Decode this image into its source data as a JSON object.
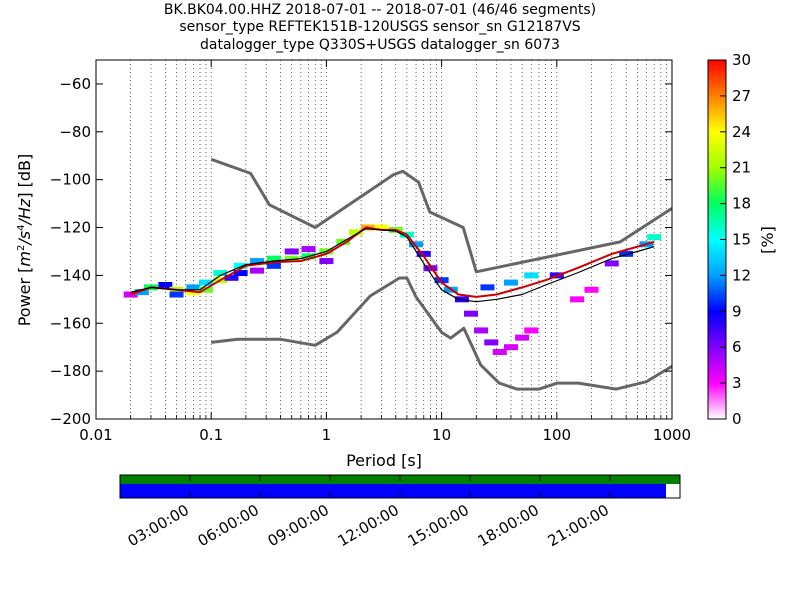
{
  "window": {
    "title_lines": [
      "BK.BK04.00.HHZ   2018-07-01 -- 2018-07-01  (46/46 segments)",
      "sensor_type REFTEK151B-120USGS sensor_sn G12187VS",
      "datalogger_type Q330S+USGS datalogger_sn 6073"
    ]
  },
  "chart_data": [
    {
      "type": "heatmap",
      "title": "BK.BK04.00.HHZ   2018-07-01 -- 2018-07-01  (46/46 segments)",
      "xlabel": "Period [s]",
      "ylabel": "Power [m²/s⁴/Hz] [dB]",
      "ylabel_parts": {
        "prefix": "Power [",
        "m": "m",
        "two": "2",
        "s": "/s",
        "four": "4",
        "hz": "/Hz",
        "suffix": "] [dB]"
      },
      "x_scale": "log",
      "xlim": [
        0.01,
        1000
      ],
      "ylim": [
        -200,
        -50
      ],
      "x_ticks": [
        0.01,
        0.1,
        1,
        10,
        100,
        1000
      ],
      "x_tick_labels": [
        "0.01",
        "0.1",
        "1",
        "10",
        "100",
        "1000"
      ],
      "y_ticks": [
        -200,
        -180,
        -160,
        -140,
        -120,
        -100,
        -80,
        -60
      ],
      "y_tick_labels": [
        "−200",
        "−180",
        "−160",
        "−140",
        "−120",
        "−100",
        "−80",
        "−60"
      ],
      "grid": "dotted vertical",
      "colorbar": {
        "label": "[%]",
        "range": [
          0,
          30
        ],
        "ticks": [
          0,
          3,
          6,
          9,
          12,
          15,
          18,
          21,
          24,
          27,
          30
        ],
        "tick_labels": [
          "0",
          "3",
          "6",
          "9",
          "12",
          "15",
          "18",
          "21",
          "24",
          "27",
          "30"
        ],
        "colormap": [
          "#ffffff",
          "#ff00ff",
          "#8000ff",
          "#0000ff",
          "#00a0ff",
          "#00ffff",
          "#00ff60",
          "#a0ff00",
          "#ffff00",
          "#ff8000",
          "#ff0000"
        ]
      },
      "noise_models": {
        "NHNM": {
          "x": [
            0.1,
            0.22,
            0.32,
            0.8,
            3.8,
            4.6,
            6.3,
            7.9,
            15.4,
            20,
            354.8,
            1000
          ],
          "y": [
            -91.5,
            -97.4,
            -110.5,
            -120,
            -98,
            -96.5,
            -101,
            -113.5,
            -120,
            -138.5,
            -126,
            -112
          ]
        },
        "NLNM": {
          "x": [
            0.1,
            0.17,
            0.4,
            0.8,
            1.24,
            2.4,
            4.3,
            5,
            6,
            10,
            12,
            15.6,
            21.9,
            31.6,
            45,
            70,
            101,
            154,
            328,
            600,
            1000
          ],
          "y": [
            -168,
            -166.7,
            -166.7,
            -169.2,
            -163.7,
            -148.6,
            -141.1,
            -141.1,
            -149,
            -163.8,
            -166.2,
            -162.1,
            -177.5,
            -185,
            -187.5,
            -187.5,
            -185,
            -185,
            -187.5,
            -184.4,
            -178
          ]
        },
        "color": "#666666"
      },
      "ppsd_mode": {
        "x": [
          0.02,
          0.03,
          0.05,
          0.08,
          0.12,
          0.2,
          0.35,
          0.6,
          1,
          1.5,
          2.2,
          3,
          4,
          5,
          7,
          10,
          14,
          20,
          30,
          50,
          80,
          150,
          300,
          500,
          700
        ],
        "y": [
          -148,
          -145,
          -146,
          -147,
          -142,
          -136,
          -134.5,
          -134,
          -131,
          -126,
          -120,
          -121,
          -121,
          -123,
          -132,
          -143,
          -148,
          -149,
          -148,
          -145,
          -142,
          -137,
          -131,
          -128,
          -126
        ]
      },
      "ppsd_mean": {
        "x": [
          0.02,
          0.03,
          0.05,
          0.08,
          0.12,
          0.2,
          0.35,
          0.6,
          1,
          1.5,
          2.2,
          3,
          4,
          5,
          7,
          10,
          14,
          20,
          30,
          50,
          80,
          150,
          300,
          500,
          700
        ],
        "y": [
          -147,
          -145,
          -146,
          -146,
          -140,
          -135.5,
          -134,
          -133,
          -130,
          -125,
          -120.5,
          -121,
          -121.5,
          -124,
          -135,
          -146,
          -150,
          -151,
          -150,
          -148,
          -144,
          -139,
          -133,
          -130,
          -128
        ]
      },
      "ppsd_colors": {
        "mode": "#cc0000",
        "mean": "#000000"
      },
      "density_cells": [
        {
          "x": 0.02,
          "y": -148,
          "p": 4
        },
        {
          "x": 0.025,
          "y": -147,
          "p": 12
        },
        {
          "x": 0.03,
          "y": -145,
          "p": 18
        },
        {
          "x": 0.04,
          "y": -144,
          "p": 9
        },
        {
          "x": 0.05,
          "y": -146,
          "p": 22
        },
        {
          "x": 0.05,
          "y": -148,
          "p": 10
        },
        {
          "x": 0.07,
          "y": -147,
          "p": 24
        },
        {
          "x": 0.07,
          "y": -145,
          "p": 12
        },
        {
          "x": 0.09,
          "y": -143,
          "p": 14
        },
        {
          "x": 0.09,
          "y": -146,
          "p": 20
        },
        {
          "x": 0.12,
          "y": -139,
          "p": 16
        },
        {
          "x": 0.12,
          "y": -142,
          "p": 22
        },
        {
          "x": 0.15,
          "y": -141,
          "p": 8
        },
        {
          "x": 0.18,
          "y": -136,
          "p": 15
        },
        {
          "x": 0.18,
          "y": -139,
          "p": 9
        },
        {
          "x": 0.25,
          "y": -134,
          "p": 12
        },
        {
          "x": 0.25,
          "y": -138,
          "p": 5
        },
        {
          "x": 0.35,
          "y": -133,
          "p": 18
        },
        {
          "x": 0.35,
          "y": -136,
          "p": 10
        },
        {
          "x": 0.5,
          "y": -133,
          "p": 20
        },
        {
          "x": 0.5,
          "y": -130,
          "p": 6
        },
        {
          "x": 0.7,
          "y": -132,
          "p": 18
        },
        {
          "x": 0.7,
          "y": -129,
          "p": 5
        },
        {
          "x": 1,
          "y": -130,
          "p": 20
        },
        {
          "x": 1,
          "y": -134,
          "p": 6
        },
        {
          "x": 1.4,
          "y": -126,
          "p": 20
        },
        {
          "x": 1.8,
          "y": -122,
          "p": 22
        },
        {
          "x": 2.3,
          "y": -120,
          "p": 26
        },
        {
          "x": 3,
          "y": -120,
          "p": 24
        },
        {
          "x": 4,
          "y": -121,
          "p": 20
        },
        {
          "x": 5,
          "y": -123,
          "p": 16
        },
        {
          "x": 6,
          "y": -127,
          "p": 12
        },
        {
          "x": 7,
          "y": -131,
          "p": 8
        },
        {
          "x": 8,
          "y": -137,
          "p": 6
        },
        {
          "x": 10,
          "y": -142,
          "p": 10
        },
        {
          "x": 12,
          "y": -146,
          "p": 12
        },
        {
          "x": 15,
          "y": -150,
          "p": 8
        },
        {
          "x": 18,
          "y": -156,
          "p": 6
        },
        {
          "x": 22,
          "y": -163,
          "p": 5
        },
        {
          "x": 27,
          "y": -168,
          "p": 6
        },
        {
          "x": 32,
          "y": -172,
          "p": 4
        },
        {
          "x": 40,
          "y": -170,
          "p": 4
        },
        {
          "x": 50,
          "y": -166,
          "p": 4
        },
        {
          "x": 60,
          "y": -163,
          "p": 3
        },
        {
          "x": 25,
          "y": -145,
          "p": 10
        },
        {
          "x": 40,
          "y": -143,
          "p": 12
        },
        {
          "x": 60,
          "y": -140,
          "p": 14
        },
        {
          "x": 100,
          "y": -140,
          "p": 8
        },
        {
          "x": 150,
          "y": -150,
          "p": 3
        },
        {
          "x": 200,
          "y": -146,
          "p": 3
        },
        {
          "x": 300,
          "y": -135,
          "p": 6
        },
        {
          "x": 400,
          "y": -131,
          "p": 10
        },
        {
          "x": 600,
          "y": -127,
          "p": 12
        },
        {
          "x": 700,
          "y": -124,
          "p": 16
        }
      ]
    },
    {
      "type": "bar",
      "title": "",
      "xlabel": "",
      "tick_labels": [
        "03:00:00",
        "06:00:00",
        "09:00:00",
        "12:00:00",
        "15:00:00",
        "18:00:00",
        "21:00:00"
      ],
      "time_range_hours": [
        0,
        24
      ],
      "data_coverage_hours": [
        0,
        24
      ],
      "ppsd_coverage_hours": [
        0,
        23.4
      ],
      "colors": {
        "data": "#008000",
        "ppsd": "#0000ff"
      }
    }
  ]
}
